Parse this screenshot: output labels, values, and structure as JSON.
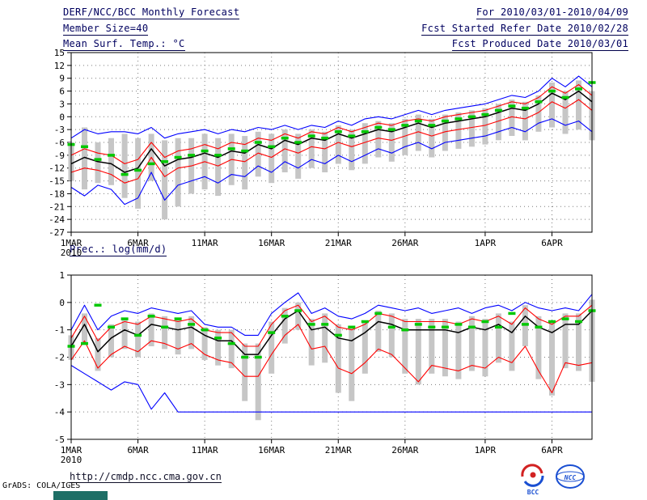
{
  "header": {
    "title": "DERF/NCC/BCC Monthly Forecast",
    "member_size": "Member Size=40",
    "for_range": "For 2010/03/01-2010/04/09",
    "fcst_started": "Fcst Started Refer Date 2010/02/28",
    "fcst_produced": "Fcst Produced Date 2010/03/01"
  },
  "footer": {
    "url": "http://cmdp.ncc.cma.gov.cn",
    "credit": "GrADS: COLA/IGES"
  },
  "logos": {
    "bcc": "BCC",
    "ncc": "NCC"
  },
  "colors": {
    "envelope": "#0000ff",
    "quartile": "#ff0000",
    "mean": "#000000",
    "obs_marker": "#00c800",
    "spread_bar": "#c6c6c6",
    "header_text": "#00005f"
  },
  "chart_data": [
    {
      "type": "line",
      "title": "Mean Surf. Temp.: °C",
      "x_range": [
        "2010-03-01",
        "2010-04-09"
      ],
      "xticks": {
        "days": [
          1,
          6,
          11,
          16,
          21,
          26,
          32,
          37
        ],
        "labels": [
          "1MAR",
          "6MAR",
          "11MAR",
          "16MAR",
          "21MAR",
          "26MAR",
          "1APR",
          "6APR"
        ],
        "year_label": "2010"
      },
      "ylim": [
        -27,
        15
      ],
      "ytick_step": 3,
      "grid": true,
      "legend": "none",
      "series": [
        {
          "name": "ensemble-max",
          "color": "#0000ff",
          "width": 1.1,
          "values": [
            -5,
            -3,
            -4,
            -3.5,
            -3.5,
            -4,
            -2.5,
            -5,
            -4,
            -3.5,
            -3,
            -4,
            -3,
            -3.5,
            -2.5,
            -3,
            -2,
            -3,
            -2,
            -2.5,
            -1,
            -2,
            -0.5,
            0,
            -0.5,
            0.5,
            1.5,
            0.5,
            1.5,
            2,
            2.5,
            3,
            4,
            5,
            4.5,
            6,
            9,
            7,
            9.5,
            7
          ]
        },
        {
          "name": "upper-quartile",
          "color": "#ff0000",
          "width": 1.1,
          "values": [
            -9,
            -7.5,
            -8.5,
            -9,
            -11,
            -10,
            -6,
            -9.5,
            -8,
            -7.5,
            -6.5,
            -7.5,
            -6,
            -6.5,
            -5,
            -5.5,
            -4,
            -5,
            -3.5,
            -4,
            -2.5,
            -3.5,
            -2.5,
            -1.5,
            -2,
            -1,
            -0.5,
            -1,
            0,
            0.5,
            1,
            1.5,
            2.5,
            3.5,
            3,
            4.5,
            7,
            5.5,
            7.5,
            5
          ]
        },
        {
          "name": "ensemble-mean",
          "color": "#000000",
          "width": 1.5,
          "values": [
            -11,
            -9.5,
            -10.5,
            -11,
            -13,
            -12,
            -7.5,
            -11.5,
            -10,
            -9.5,
            -8.5,
            -9.5,
            -8,
            -8.5,
            -6.5,
            -7.5,
            -5.5,
            -6.5,
            -5,
            -5.5,
            -4,
            -5,
            -4,
            -3,
            -3.5,
            -2.5,
            -1.5,
            -2.5,
            -1.5,
            -1,
            -0.5,
            0,
            1,
            2,
            1.5,
            3,
            5.5,
            4,
            6,
            3.5
          ]
        },
        {
          "name": "lower-quartile",
          "color": "#ff0000",
          "width": 1.1,
          "values": [
            -13,
            -12,
            -12.5,
            -13.5,
            -15.5,
            -14.5,
            -9.5,
            -14,
            -12,
            -11.5,
            -10.5,
            -11.5,
            -10,
            -10.5,
            -8.5,
            -9.5,
            -7.5,
            -8.5,
            -7,
            -7.5,
            -6,
            -7,
            -6,
            -5,
            -5.5,
            -4.5,
            -3.5,
            -4.5,
            -3.5,
            -3,
            -2.5,
            -2,
            -1,
            0,
            -0.5,
            1,
            3.5,
            2,
            4,
            1.5
          ]
        },
        {
          "name": "ensemble-min",
          "color": "#0000ff",
          "width": 1.1,
          "values": [
            -16.5,
            -18.5,
            -16,
            -17,
            -20.5,
            -19,
            -13,
            -19.5,
            -16,
            -15,
            -14,
            -15.5,
            -13.5,
            -14,
            -11.5,
            -13,
            -10.5,
            -12,
            -10,
            -11,
            -9,
            -10.5,
            -9,
            -7.5,
            -8.5,
            -7,
            -6,
            -7.5,
            -6,
            -5.5,
            -5,
            -4.5,
            -3.5,
            -2.5,
            -3.5,
            -1.5,
            -0.5,
            -2,
            -1,
            -3.5
          ]
        }
      ],
      "spread_bars": {
        "name": "ensemble-spread",
        "color": "#c6c6c6",
        "top": [
          -6,
          -2.5,
          -6,
          -5,
          -4,
          -5,
          -4,
          -5.5,
          -5,
          -5,
          -4,
          -5,
          -4,
          -4.5,
          -3.5,
          -4,
          -3,
          -4,
          -3,
          -3.5,
          -2,
          -3,
          -1.5,
          -1,
          -1.5,
          -0.5,
          0.5,
          -0.5,
          0.5,
          1,
          1.5,
          2,
          3,
          4,
          3.5,
          5,
          8,
          6,
          8.5,
          6
        ],
        "bottom": [
          -15,
          -17,
          -15.5,
          -16,
          -19,
          -21.5,
          -15,
          -24,
          -21,
          -18,
          -17,
          -18.5,
          -16,
          -17,
          -14,
          -15.5,
          -13,
          -14.5,
          -12,
          -13,
          -11,
          -12.5,
          -11,
          -9.5,
          -10.5,
          -9,
          -8,
          -9.5,
          -8,
          -7.5,
          -7,
          -6.5,
          -5.5,
          -4.5,
          -5.5,
          -3.5,
          -2.5,
          -4,
          -3,
          -5.5
        ]
      },
      "obs_markers": {
        "name": "observation-dashes",
        "color": "#00c800",
        "values": [
          -6.5,
          -7,
          -10,
          -9,
          -13.5,
          -12.5,
          -11,
          -10.5,
          -9.5,
          -9,
          -8,
          -9,
          -7.5,
          -8,
          -6,
          -7,
          -5,
          -6,
          -4.5,
          -5,
          -3.5,
          -4.5,
          -3.5,
          -2.5,
          -3,
          -2,
          -1,
          -2,
          -1,
          -0.5,
          0,
          0.5,
          1.5,
          2.5,
          2,
          3.5,
          6,
          4.5,
          6.5,
          8
        ]
      }
    },
    {
      "type": "line",
      "title": "Prec.: log(mm/d)",
      "x_range": [
        "2010-03-01",
        "2010-04-09"
      ],
      "xticks": {
        "days": [
          1,
          6,
          11,
          16,
          21,
          26,
          32,
          37
        ],
        "labels": [
          "1MAR",
          "6MAR",
          "11MAR",
          "16MAR",
          "21MAR",
          "26MAR",
          "1APR",
          "6APR"
        ],
        "year_label": "2010"
      },
      "ylim": [
        -5,
        1
      ],
      "ytick_step": 1,
      "grid": true,
      "legend": "none",
      "series": [
        {
          "name": "ensemble-max",
          "color": "#0000ff",
          "width": 1.1,
          "values": [
            -1,
            -0.1,
            -1,
            -0.5,
            -0.3,
            -0.4,
            -0.2,
            -0.3,
            -0.4,
            -0.3,
            -0.8,
            -0.9,
            -0.9,
            -1.2,
            -1.2,
            -0.4,
            0,
            0.35,
            -0.4,
            -0.2,
            -0.5,
            -0.6,
            -0.4,
            -0.1,
            -0.2,
            -0.3,
            -0.2,
            -0.4,
            -0.3,
            -0.2,
            -0.4,
            -0.2,
            -0.1,
            -0.3,
            0,
            -0.2,
            -0.3,
            -0.2,
            -0.3,
            0.3
          ]
        },
        {
          "name": "upper-quartile",
          "color": "#ff0000",
          "width": 1.1,
          "values": [
            -1.3,
            -0.5,
            -1.4,
            -0.9,
            -0.7,
            -0.8,
            -0.5,
            -0.6,
            -0.7,
            -0.6,
            -1,
            -1.1,
            -1.1,
            -1.6,
            -1.6,
            -0.8,
            -0.3,
            -0.1,
            -0.7,
            -0.5,
            -0.9,
            -1,
            -0.8,
            -0.4,
            -0.5,
            -0.7,
            -0.7,
            -0.7,
            -0.7,
            -0.8,
            -0.6,
            -0.7,
            -0.5,
            -0.8,
            -0.2,
            -0.6,
            -0.8,
            -0.5,
            -0.5,
            -0.1
          ]
        },
        {
          "name": "ensemble-mean",
          "color": "#000000",
          "width": 1.5,
          "values": [
            -1.6,
            -0.8,
            -1.8,
            -1.3,
            -1,
            -1.2,
            -0.8,
            -0.9,
            -1,
            -0.9,
            -1.2,
            -1.4,
            -1.4,
            -1.9,
            -1.9,
            -1.2,
            -0.6,
            -0.3,
            -1,
            -0.9,
            -1.3,
            -1.4,
            -1.1,
            -0.7,
            -0.8,
            -1,
            -1,
            -1,
            -1,
            -1.1,
            -0.9,
            -1,
            -0.8,
            -1.1,
            -0.5,
            -0.9,
            -1.1,
            -0.8,
            -0.8,
            -0.3
          ]
        },
        {
          "name": "lower-quartile",
          "color": "#ff0000",
          "width": 1.1,
          "values": [
            -2.1,
            -1.4,
            -2.4,
            -1.9,
            -1.6,
            -1.8,
            -1.4,
            -1.5,
            -1.7,
            -1.5,
            -1.9,
            -2.1,
            -2.2,
            -2.7,
            -2.7,
            -1.9,
            -1.2,
            -0.8,
            -1.7,
            -1.6,
            -2.4,
            -2.6,
            -2.2,
            -1.7,
            -1.9,
            -2.4,
            -2.9,
            -2.3,
            -2.4,
            -2.5,
            -2.3,
            -2.4,
            -2,
            -2.2,
            -1.6,
            -2.5,
            -3.3,
            -2.2,
            -2.3,
            -2.2
          ]
        },
        {
          "name": "ensemble-min",
          "color": "#0000ff",
          "width": 1.1,
          "values": [
            -2.3,
            -2.6,
            -2.9,
            -3.2,
            -2.9,
            -3,
            -3.9,
            -3.3,
            -4,
            -4,
            -4,
            -4,
            -4,
            -4,
            -4,
            -4,
            -4,
            -4,
            -4,
            -4,
            -4,
            -4,
            -4,
            -4,
            -4,
            -4,
            -4,
            -4,
            -4,
            -4,
            -4,
            -4,
            -4,
            -4,
            -4,
            -4,
            -4,
            -4,
            -4,
            -4
          ]
        }
      ],
      "spread_bars": {
        "name": "ensemble-spread",
        "color": "#c6c6c6",
        "top": [
          -1.2,
          -0.4,
          -1.3,
          -0.8,
          -0.6,
          -0.7,
          -0.4,
          -0.5,
          -0.6,
          -0.5,
          -0.9,
          -1,
          -1,
          -1.5,
          -1.5,
          -0.7,
          -0.2,
          0,
          -0.6,
          -0.4,
          -0.8,
          -0.9,
          -0.7,
          -0.3,
          -0.4,
          -0.6,
          -0.6,
          -0.6,
          -0.6,
          -0.7,
          -0.5,
          -0.6,
          -0.4,
          -0.7,
          -0.1,
          -0.5,
          -0.7,
          -0.4,
          -0.4,
          0.1
        ],
        "bottom": [
          -2.1,
          -1.5,
          -2.5,
          -2,
          -1.7,
          -2,
          -1.6,
          -1.7,
          -1.9,
          -1.7,
          -2.1,
          -2.3,
          -2.4,
          -3.6,
          -4.3,
          -2.6,
          -1.5,
          -1,
          -2.3,
          -2.2,
          -3.3,
          -3.6,
          -2.6,
          -1.8,
          -2,
          -2.6,
          -3,
          -2.6,
          -2.7,
          -2.8,
          -2.5,
          -2.7,
          -2.2,
          -2.5,
          -1.6,
          -2.8,
          -3.4,
          -2.4,
          -2.5,
          -2.9
        ]
      },
      "obs_markers": {
        "name": "observation-dashes",
        "color": "#00c800",
        "values": [
          -1.6,
          -1.5,
          -0.1,
          -0.9,
          -0.6,
          -1.2,
          -0.5,
          -0.9,
          -0.6,
          -0.8,
          -1,
          -1.3,
          -1.5,
          -2,
          -2,
          -1.1,
          -0.5,
          -0.3,
          -0.8,
          -0.8,
          -1.2,
          -0.9,
          -0.7,
          -0.4,
          -0.9,
          -1,
          -0.8,
          -0.9,
          -0.9,
          -0.8,
          -0.9,
          -0.7,
          -0.9,
          -0.4,
          -0.8,
          -0.9,
          -0.7,
          -0.6,
          -0.7,
          -0.3
        ]
      }
    }
  ]
}
